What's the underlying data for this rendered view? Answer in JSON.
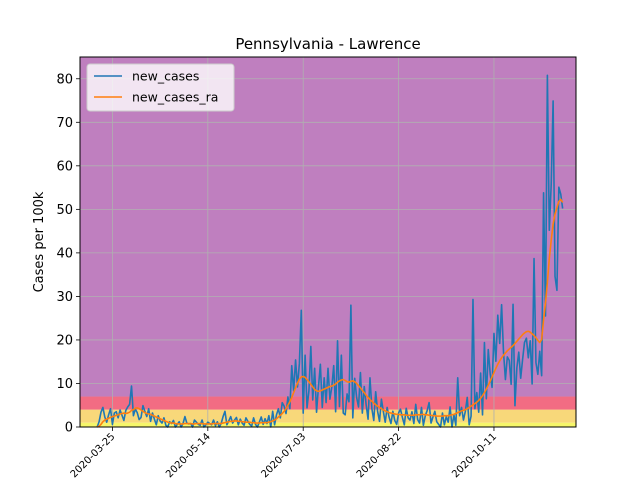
{
  "chart_data": {
    "type": "line",
    "title": "Pennsylvania - Lawrence",
    "xlabel": "",
    "ylabel": "Cases per 100k",
    "x_start": "2020-03-17",
    "x_end": "2020-11-18",
    "xlim": [
      "2020-03-08",
      "2020-11-23"
    ],
    "ylim": [
      0,
      85
    ],
    "yticks": [
      0,
      10,
      20,
      30,
      40,
      50,
      60,
      70,
      80
    ],
    "xticks": [
      "2020-03-25",
      "2020-05-14",
      "2020-07-03",
      "2020-08-22",
      "2020-10-11"
    ],
    "x_tick_rotation": 45,
    "grid": true,
    "legend_position": "upper left",
    "background_bands": [
      {
        "from": 0,
        "to": 1,
        "color": "#f6f66a"
      },
      {
        "from": 1,
        "to": 4,
        "color": "#f8d87a"
      },
      {
        "from": 4,
        "to": 7,
        "color": "#f26c83"
      },
      {
        "from": 7,
        "to": 85,
        "color": "#bf7fbf"
      }
    ],
    "series": [
      {
        "name": "new_cases",
        "color": "#1f77b4",
        "values": [
          0,
          1.2,
          3.4,
          4.5,
          2.3,
          1.1,
          2.8,
          4.2,
          0.6,
          3.2,
          3.5,
          2.1,
          3.9,
          2.7,
          1.5,
          3.8,
          4.6,
          5.2,
          9.4,
          2.6,
          4.1,
          3.3,
          1.7,
          2.2,
          4.9,
          3.6,
          2.4,
          4.2,
          1.3,
          3.2,
          1.8,
          0.5,
          2.6,
          1.4,
          0.9,
          2.1,
          0.4,
          0,
          1.2,
          0.8,
          1.5,
          0,
          0.6,
          1.2,
          0,
          0.8,
          2.4,
          0.9,
          0.7,
          0.8,
          0,
          1.6,
          1.1,
          0.6,
          0.4,
          1.6,
          0,
          0.5,
          1.1,
          0.8,
          0.5,
          1.6,
          0.3,
          1.2,
          0,
          0.8,
          2.4,
          3.6,
          0.5,
          1.4,
          2.4,
          0.9,
          1.6,
          2.2,
          0.5,
          1.8,
          0.9,
          0.4,
          2.1,
          1.3,
          0.6,
          0.2,
          2.1,
          0.6,
          0,
          1.1,
          2.3,
          0.6,
          1.9,
          0.8,
          2.6,
          0,
          3.6,
          0.5,
          2.8,
          4.2,
          2.1,
          5.6,
          4.8,
          3.1,
          6.9,
          4.2,
          14.1,
          8.3,
          15.4,
          9.2,
          14.6,
          26.8,
          3.2,
          16.5,
          4.4,
          8.3,
          18.5,
          6.2,
          13.5,
          3.4,
          9.2,
          14.4,
          4.5,
          11.3,
          5.6,
          13.5,
          6.4,
          9.2,
          14.1,
          3.5,
          19.8,
          4.7,
          16.5,
          3.2,
          2.8,
          7.6,
          5.8,
          28,
          2.1,
          11.2,
          6.8,
          4.6,
          12.5,
          3.2,
          9.3,
          5.1,
          1.8,
          11.3,
          4.2,
          1.5,
          8.1,
          3.6,
          1.3,
          6.4,
          3.6,
          1.1,
          4.5,
          2.3,
          0.8,
          3.6,
          1.5,
          0.6,
          3.2,
          4.1,
          2.2,
          0.5,
          4.3,
          2.1,
          1.6,
          3.5,
          0.8,
          5.2,
          1.7,
          0.9,
          4.5,
          0.4,
          2.6,
          3.8,
          5.6,
          0.9,
          2.3,
          3.6,
          1.2,
          0.6,
          0,
          3.2,
          0.5,
          2.4,
          1.1,
          4.6,
          0,
          2.8,
          0.4,
          11.3,
          2.6,
          4.5,
          1.6,
          3.6,
          6.8,
          0.5,
          2.5,
          29.3,
          4.2,
          7.9,
          3.4,
          12.4,
          2.8,
          19.4,
          6.5,
          17.8,
          12.3,
          9.1,
          21.5,
          15.1,
          25.7,
          19.2,
          28.1,
          17.2,
          10.9,
          16.1,
          15.3,
          9.8,
          28.2,
          4.9,
          13.6,
          17.2,
          11.2,
          15.5,
          19.4,
          20.4,
          15.9,
          19.8,
          9.9,
          38.7,
          14.8,
          12.1,
          17.4,
          11.8,
          53.8,
          25.5,
          80.8,
          45.2,
          55.7,
          74.9,
          34.6,
          31.4,
          55.1,
          53.5,
          50.2
        ]
      },
      {
        "name": "new_cases_ra",
        "color": "#ff7f0e",
        "values": [
          0,
          0.2,
          0.6,
          1.2,
          1.6,
          1.8,
          2.0,
          2.2,
          2.4,
          2.5,
          2.7,
          2.8,
          3.0,
          3.1,
          3.2,
          3.1,
          3.2,
          3.4,
          3.8,
          4.0,
          4.3,
          4.4,
          4.2,
          3.9,
          3.6,
          3.3,
          3.1,
          3.0,
          2.9,
          2.7,
          2.5,
          2.3,
          2.1,
          1.9,
          1.7,
          1.5,
          1.3,
          1.1,
          1.0,
          0.9,
          0.9,
          0.8,
          0.7,
          0.7,
          0.7,
          0.7,
          0.8,
          0.8,
          0.8,
          0.8,
          0.7,
          0.7,
          0.8,
          0.8,
          0.8,
          0.8,
          0.7,
          0.7,
          0.7,
          0.7,
          0.7,
          0.8,
          0.8,
          0.8,
          0.8,
          0.8,
          0.9,
          1.0,
          1.1,
          1.2,
          1.3,
          1.3,
          1.4,
          1.4,
          1.3,
          1.3,
          1.2,
          1.2,
          1.1,
          1.1,
          1.1,
          1.0,
          1.0,
          0.9,
          0.9,
          0.9,
          1.0,
          1.0,
          1.0,
          1.0,
          1.1,
          1.2,
          1.4,
          1.6,
          1.9,
          2.3,
          2.7,
          3.1,
          3.6,
          4.2,
          5.0,
          5.8,
          6.8,
          7.9,
          9.0,
          10.1,
          11.0,
          11.5,
          11.6,
          11.4,
          10.9,
          10.4,
          9.8,
          9.2,
          8.6,
          8.3,
          8.2,
          8.3,
          8.5,
          8.7,
          8.9,
          9.1,
          9.3,
          9.4,
          9.6,
          9.9,
          10.3,
          10.6,
          10.8,
          10.9,
          10.7,
          10.4,
          10.3,
          10.5,
          10.6,
          10.4,
          10.0,
          9.5,
          9.0,
          8.4,
          7.9,
          7.3,
          6.8,
          6.3,
          5.9,
          5.5,
          5.1,
          4.8,
          4.5,
          4.2,
          3.9,
          3.7,
          3.5,
          3.3,
          3.2,
          3.1,
          3.0,
          2.9,
          2.9,
          2.8,
          2.8,
          2.8,
          2.7,
          2.7,
          2.7,
          2.7,
          2.7,
          2.8,
          2.8,
          2.8,
          2.9,
          2.9,
          2.8,
          2.8,
          2.7,
          2.7,
          2.6,
          2.6,
          2.5,
          2.5,
          2.5,
          2.5,
          2.6,
          2.6,
          2.6,
          2.7,
          2.8,
          2.9,
          3.1,
          3.3,
          3.5,
          3.7,
          3.8,
          4.0,
          4.2,
          4.5,
          4.8,
          5.1,
          5.4,
          5.7,
          6.1,
          6.6,
          7.2,
          7.9,
          8.7,
          9.6,
          10.5,
          11.5,
          12.5,
          13.5,
          14.4,
          15.2,
          15.9,
          16.5,
          17.0,
          17.5,
          17.9,
          18.3,
          18.7,
          19.2,
          19.7,
          20.2,
          20.7,
          21.2,
          21.6,
          21.9,
          22.0,
          21.8,
          21.4,
          21.0,
          20.5,
          19.9,
          19.4,
          20.1,
          24.6,
          28.5,
          33.2,
          38.7,
          42.9,
          46.6,
          48.9,
          50.4,
          51.8,
          52.3,
          51.6
        ]
      }
    ]
  }
}
